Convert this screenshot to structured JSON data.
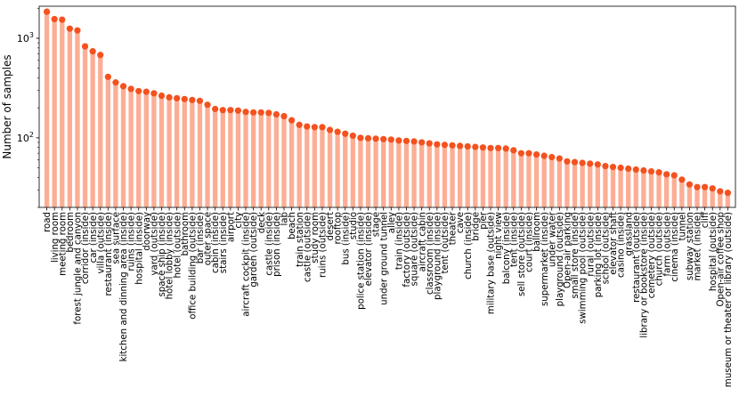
{
  "chart_data": {
    "type": "bar",
    "ylabel": "Number of samples",
    "xlabel": "",
    "yscale": "log",
    "ylim": [
      20,
      2100
    ],
    "yticks": [
      {
        "value": 100,
        "base": "10",
        "exp": "2"
      },
      {
        "value": 1000,
        "base": "10",
        "exp": "3"
      }
    ],
    "bar_color": "#fcae95",
    "marker_color": "#f4511e",
    "grid": false,
    "categories": [
      "road",
      "living room",
      "meeting room",
      "bedroom",
      "forest jungle and canyon",
      "corridor (inside)",
      "car (inside)",
      "villa (outside)",
      "restaurant (inside)",
      "sea surface",
      "kitchen and dinning area (inside)",
      "ruins (inside)",
      "hospital (inside)",
      "doorway",
      "yard (outside)",
      "space ship (inside)",
      "hotel lobby (inside)",
      "hotel (outside)",
      "bathroom",
      "office building (outside)",
      "bar (inside)",
      "outer space",
      "cabin (inside)",
      "stairs (inside)",
      "airport",
      "city",
      "aircraft cockpit (inside)",
      "garden (outside)",
      "deck",
      "castle (inside)",
      "prison (inside)",
      "lab",
      "beach",
      "train station",
      "castle (outside)",
      "study room",
      "ruins (outside)",
      "desert",
      "rooftop",
      "bus (inside)",
      "studio",
      "police station (inside)",
      "elevator (inside)",
      "stage",
      "under ground tunnel",
      "alley",
      "train (inside)",
      "factory (outside)",
      "square (outside)",
      "aircraft cabin",
      "classroom (inside)",
      "playground (inside)",
      "tent (outside)",
      "theater",
      "cave",
      "church (inside)",
      "bridge",
      "pier",
      "military base (outside)",
      "night view",
      "balcony (inside)",
      "tent (inside)",
      "sell store (outside)",
      "court (inside)",
      "ballroom",
      "supermarket (inside)",
      "under water",
      "playground (outside)",
      "Open-air parking",
      "small store (inside)",
      "swimming pool (outside)",
      "rural (outside)",
      "parking lot (inside)",
      "school (outside)",
      "elevator shaft",
      "casino (inside)",
      "grassland",
      "restaurant (outside)",
      "library or bookstore (inside)",
      "cemetery (outside)",
      "church (outside)",
      "farm (outside)",
      "cinema (inside)",
      "tunnel",
      "subway station",
      "market (inside)",
      "cliff",
      "hospital (outside)",
      "Open-air coffee shop",
      "museum or theater or library (outside)"
    ],
    "values": [
      1850,
      1560,
      1540,
      1250,
      1200,
      830,
      740,
      680,
      410,
      360,
      330,
      310,
      295,
      290,
      280,
      265,
      255,
      250,
      245,
      240,
      235,
      215,
      195,
      190,
      190,
      188,
      182,
      180,
      180,
      178,
      172,
      165,
      150,
      135,
      130,
      128,
      128,
      120,
      115,
      110,
      105,
      100,
      99,
      98,
      97,
      96,
      94,
      93,
      92,
      90,
      88,
      86,
      85,
      84,
      83,
      82,
      81,
      80,
      79,
      79,
      78,
      75,
      70,
      70,
      68,
      66,
      64,
      62,
      58,
      57,
      56,
      55,
      54,
      52,
      51,
      50,
      49,
      48,
      47,
      46,
      45,
      43,
      42,
      38,
      34,
      32,
      32,
      31,
      29,
      28
    ]
  }
}
